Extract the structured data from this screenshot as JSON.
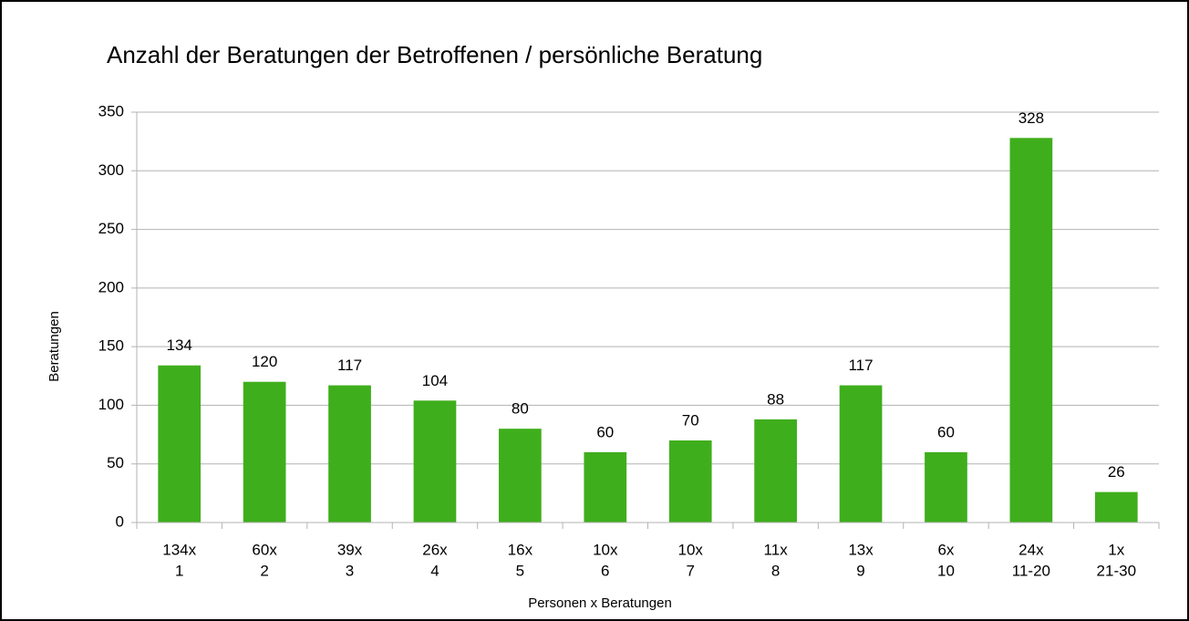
{
  "chart_data": {
    "type": "bar",
    "title": "Anzahl der Beratungen der Betroffenen / persönliche Beratung",
    "x_label": "Personen x Beratungen",
    "y_label": "Beratungen",
    "categories": [
      [
        "134x",
        "1"
      ],
      [
        "60x",
        "2"
      ],
      [
        "39x",
        "3"
      ],
      [
        "26x",
        "4"
      ],
      [
        "16x",
        "5"
      ],
      [
        "10x",
        "6"
      ],
      [
        "10x",
        "7"
      ],
      [
        "11x",
        "8"
      ],
      [
        "13x",
        "9"
      ],
      [
        "6x",
        "10"
      ],
      [
        "24x",
        "11-20"
      ],
      [
        "1x",
        "21-30"
      ]
    ],
    "values": [
      134,
      120,
      117,
      104,
      80,
      60,
      70,
      88,
      117,
      60,
      328,
      26
    ],
    "color": "#3fae1c",
    "ylim": [
      0,
      350
    ],
    "yticks": [
      0,
      50,
      100,
      150,
      200,
      250,
      300,
      350
    ],
    "grid": true
  }
}
